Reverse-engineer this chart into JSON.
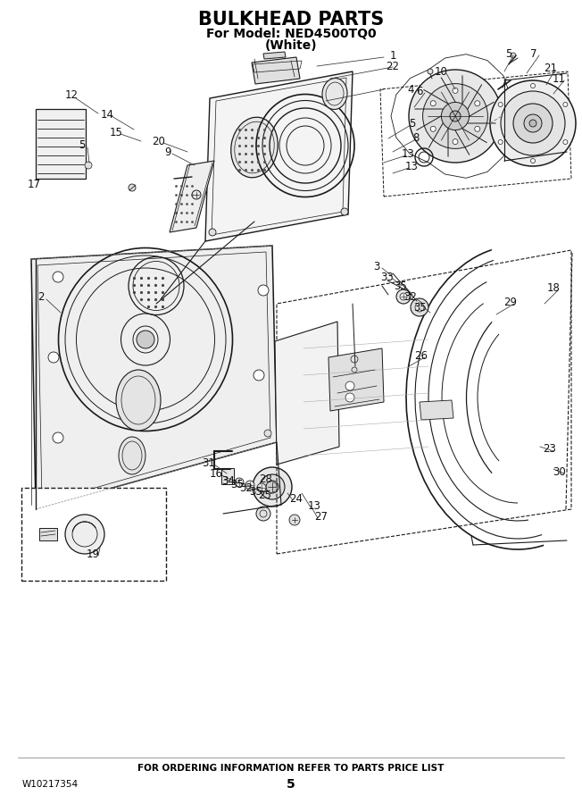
{
  "title": "BULKHEAD PARTS",
  "subtitle1": "For Model: NED4500TQ0",
  "subtitle2": "(White)",
  "footer_text": "FOR ORDERING INFORMATION REFER TO PARTS PRICE LIST",
  "part_number": "W10217354",
  "page_number": "5",
  "bg_color": "#ffffff",
  "title_fontsize": 15,
  "subtitle_fontsize": 10,
  "footer_fontsize": 7.5,
  "label_fontsize": 8.5
}
